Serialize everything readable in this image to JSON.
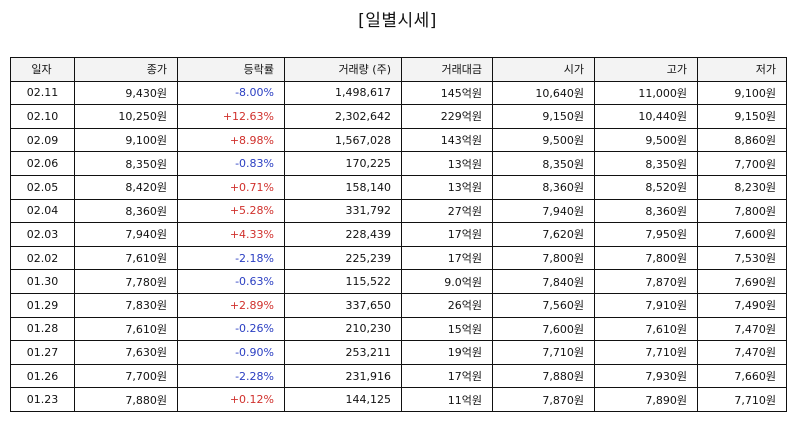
{
  "title": "[일별시세]",
  "table": {
    "headers": [
      "일자",
      "종가",
      "등락률",
      "거래량 (주)",
      "거래대금",
      "시가",
      "고가",
      "저가"
    ],
    "colors": {
      "up": "#d0312d",
      "down": "#2a3ec2"
    },
    "rows": [
      {
        "date": "02.11",
        "close": "9,430원",
        "change": "-8.00%",
        "dir": "down",
        "volume": "1,498,617",
        "amount": "145억원",
        "open": "10,640원",
        "high": "11,000원",
        "low": "9,100원"
      },
      {
        "date": "02.10",
        "close": "10,250원",
        "change": "+12.63%",
        "dir": "up",
        "volume": "2,302,642",
        "amount": "229억원",
        "open": "9,150원",
        "high": "10,440원",
        "low": "9,150원"
      },
      {
        "date": "02.09",
        "close": "9,100원",
        "change": "+8.98%",
        "dir": "up",
        "volume": "1,567,028",
        "amount": "143억원",
        "open": "9,500원",
        "high": "9,500원",
        "low": "8,860원"
      },
      {
        "date": "02.06",
        "close": "8,350원",
        "change": "-0.83%",
        "dir": "down",
        "volume": "170,225",
        "amount": "13억원",
        "open": "8,350원",
        "high": "8,350원",
        "low": "7,700원"
      },
      {
        "date": "02.05",
        "close": "8,420원",
        "change": "+0.71%",
        "dir": "up",
        "volume": "158,140",
        "amount": "13억원",
        "open": "8,360원",
        "high": "8,520원",
        "low": "8,230원"
      },
      {
        "date": "02.04",
        "close": "8,360원",
        "change": "+5.28%",
        "dir": "up",
        "volume": "331,792",
        "amount": "27억원",
        "open": "7,940원",
        "high": "8,360원",
        "low": "7,800원"
      },
      {
        "date": "02.03",
        "close": "7,940원",
        "change": "+4.33%",
        "dir": "up",
        "volume": "228,439",
        "amount": "17억원",
        "open": "7,620원",
        "high": "7,950원",
        "low": "7,600원"
      },
      {
        "date": "02.02",
        "close": "7,610원",
        "change": "-2.18%",
        "dir": "down",
        "volume": "225,239",
        "amount": "17억원",
        "open": "7,800원",
        "high": "7,800원",
        "low": "7,530원"
      },
      {
        "date": "01.30",
        "close": "7,780원",
        "change": "-0.63%",
        "dir": "down",
        "volume": "115,522",
        "amount": "9.0억원",
        "open": "7,840원",
        "high": "7,870원",
        "low": "7,690원"
      },
      {
        "date": "01.29",
        "close": "7,830원",
        "change": "+2.89%",
        "dir": "up",
        "volume": "337,650",
        "amount": "26억원",
        "open": "7,560원",
        "high": "7,910원",
        "low": "7,490원"
      },
      {
        "date": "01.28",
        "close": "7,610원",
        "change": "-0.26%",
        "dir": "down",
        "volume": "210,230",
        "amount": "15억원",
        "open": "7,600원",
        "high": "7,610원",
        "low": "7,470원"
      },
      {
        "date": "01.27",
        "close": "7,630원",
        "change": "-0.90%",
        "dir": "down",
        "volume": "253,211",
        "amount": "19억원",
        "open": "7,710원",
        "high": "7,710원",
        "low": "7,470원"
      },
      {
        "date": "01.26",
        "close": "7,700원",
        "change": "-2.28%",
        "dir": "down",
        "volume": "231,916",
        "amount": "17억원",
        "open": "7,880원",
        "high": "7,930원",
        "low": "7,660원"
      },
      {
        "date": "01.23",
        "close": "7,880원",
        "change": "+0.12%",
        "dir": "up",
        "volume": "144,125",
        "amount": "11억원",
        "open": "7,870원",
        "high": "7,890원",
        "low": "7,710원"
      }
    ]
  }
}
